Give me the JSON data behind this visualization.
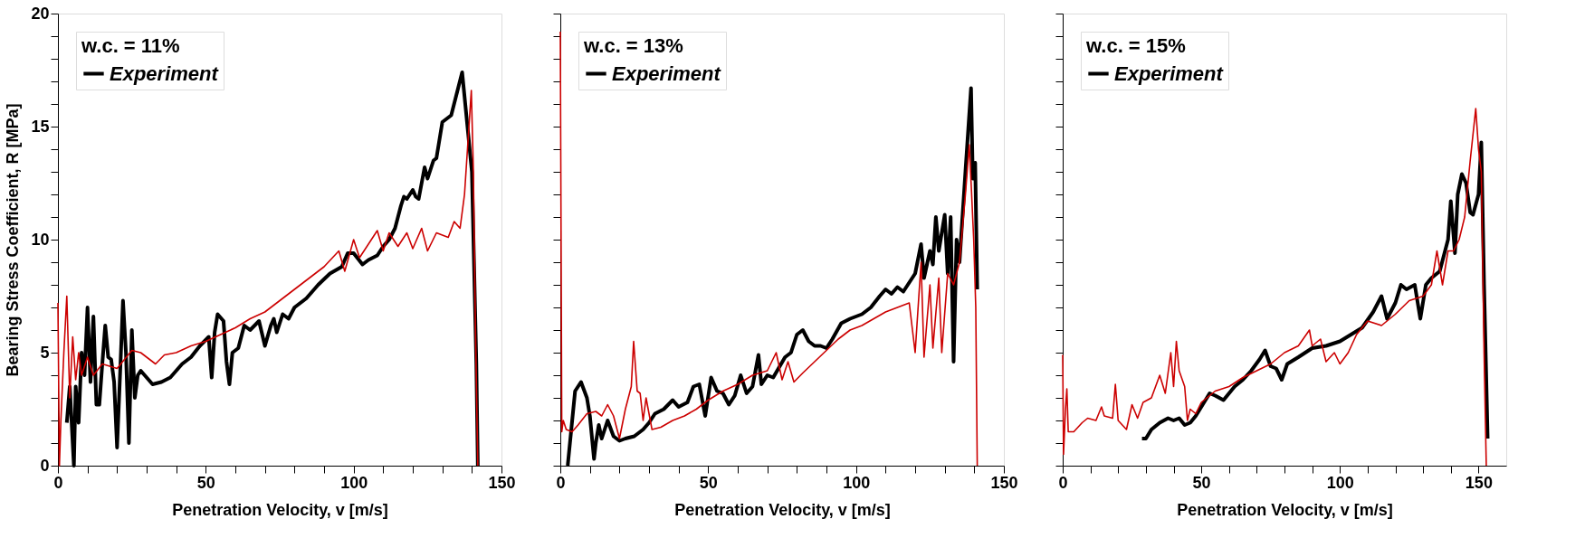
{
  "chart_data": [
    {
      "type": "line",
      "xlabel": "Penetration Velocity, v [m/s]",
      "ylabel": "Bearing Stress Coefficient, R [MPa]",
      "legend_title": "w.c. = 11%",
      "legend": "top left",
      "grid": false,
      "line_style": "solid",
      "marker": "none",
      "xlim": [
        0,
        150
      ],
      "xticks": [
        0,
        {
          "value": 10,
          "label": null
        },
        {
          "value": 20,
          "label": null
        },
        {
          "value": 30,
          "label": null
        },
        {
          "value": 40,
          "label": null
        },
        50,
        {
          "value": 60,
          "label": null
        },
        {
          "value": 70,
          "label": null
        },
        {
          "value": 80,
          "label": null
        },
        {
          "value": 90,
          "label": null
        },
        100,
        {
          "value": 110,
          "label": null
        },
        {
          "value": 120,
          "label": null
        },
        {
          "value": 130,
          "label": null
        },
        {
          "value": 140,
          "label": null
        },
        150
      ],
      "ylim": [
        0,
        20
      ],
      "yticks": [
        0,
        {
          "value": 1,
          "label": null
        },
        {
          "value": 2,
          "label": null
        },
        {
          "value": 3,
          "label": null
        },
        {
          "value": 4,
          "label": null
        },
        5,
        {
          "value": 6,
          "label": null
        },
        {
          "value": 7,
          "label": null
        },
        {
          "value": 8,
          "label": null
        },
        {
          "value": 9,
          "label": null
        },
        10,
        {
          "value": 11,
          "label": null
        },
        {
          "value": 12,
          "label": null
        },
        {
          "value": 13,
          "label": null
        },
        {
          "value": 14,
          "label": null
        },
        15,
        {
          "value": 16,
          "label": null
        },
        {
          "value": 17,
          "label": null
        },
        {
          "value": 18,
          "label": null
        },
        {
          "value": 19,
          "label": null
        },
        20
      ],
      "series": [
        {
          "name": "Experiment",
          "color": "#000000",
          "x": [
            3,
            4,
            5.4,
            6,
            7,
            8,
            9,
            10,
            11,
            12,
            13,
            14,
            15,
            16,
            17,
            18,
            19,
            20,
            21,
            22,
            23,
            24,
            25,
            26,
            27,
            28,
            30,
            32,
            35,
            38,
            40,
            42,
            45,
            48,
            51,
            52,
            53,
            54,
            56,
            57,
            58,
            59,
            61,
            63,
            65,
            68,
            70,
            72,
            73,
            74,
            76,
            78,
            80,
            84,
            88,
            92,
            96,
            98,
            100,
            103,
            105,
            108,
            110,
            112,
            114,
            116,
            117,
            118,
            120,
            121,
            122,
            124,
            125,
            127,
            128,
            130,
            133,
            136.7,
            138.5,
            140,
            141.5,
            142
          ],
          "values": [
            1.9,
            3.5,
            0,
            3.5,
            1.9,
            5,
            4,
            7,
            3.7,
            6.6,
            2.7,
            2.7,
            4.5,
            6.2,
            4.8,
            4.7,
            3.7,
            0.8,
            4,
            7.3,
            5,
            1,
            6,
            3,
            4,
            4.2,
            3.9,
            3.6,
            3.7,
            3.9,
            4.2,
            4.5,
            4.8,
            5.3,
            5.7,
            3.9,
            5.9,
            6.7,
            6.4,
            4.6,
            3.6,
            5,
            5.2,
            6.2,
            6,
            6.4,
            5.3,
            6.2,
            6.5,
            5.9,
            6.7,
            6.5,
            7,
            7.4,
            8,
            8.5,
            8.8,
            9.4,
            9.4,
            8.9,
            9.1,
            9.3,
            9.7,
            10,
            10.5,
            11.5,
            11.9,
            11.8,
            12.2,
            11.9,
            11.8,
            13.2,
            12.7,
            13.5,
            13.6,
            15.2,
            15.5,
            17.4,
            15,
            13,
            4.5,
            0
          ]
        },
        {
          "color": "#cc0000",
          "x": [
            0,
            0.5,
            1,
            2,
            3,
            4,
            5,
            6,
            7,
            8,
            10,
            12,
            15,
            20,
            25,
            28,
            30,
            33,
            36,
            40,
            45,
            50,
            55,
            60,
            65,
            70,
            75,
            80,
            85,
            90,
            95,
            97,
            100,
            102,
            105,
            108,
            110,
            112,
            115,
            118,
            120,
            123,
            125,
            128,
            132,
            134,
            136,
            137.5,
            139,
            139.8,
            140.5,
            141.2,
            142
          ],
          "values": [
            7.2,
            0,
            2,
            5,
            7.5,
            3,
            5.7,
            3.8,
            5,
            4,
            4.8,
            4,
            4.5,
            4.3,
            5.1,
            5,
            4.8,
            4.5,
            4.9,
            5,
            5.3,
            5.5,
            5.8,
            6.1,
            6.5,
            6.8,
            7.3,
            7.8,
            8.3,
            8.8,
            9.5,
            8.6,
            10,
            9.2,
            9.8,
            10.4,
            9.5,
            10.3,
            9.7,
            10.3,
            9.6,
            10.5,
            9.5,
            10.3,
            10.1,
            10.8,
            10.5,
            12,
            15,
            16.6,
            13,
            6,
            0
          ]
        }
      ]
    },
    {
      "type": "line",
      "xlabel": "Penetration Velocity, v [m/s]",
      "legend_title": "w.c. = 13%",
      "legend": "top left",
      "grid": false,
      "line_style": "solid",
      "marker": "none",
      "tick_labels": "x",
      "xlim": [
        0,
        150
      ],
      "xticks": [
        0,
        {
          "value": 10,
          "label": null
        },
        {
          "value": 20,
          "label": null
        },
        {
          "value": 30,
          "label": null
        },
        {
          "value": 40,
          "label": null
        },
        50,
        {
          "value": 60,
          "label": null
        },
        {
          "value": 70,
          "label": null
        },
        {
          "value": 80,
          "label": null
        },
        {
          "value": 90,
          "label": null
        },
        100,
        {
          "value": 110,
          "label": null
        },
        {
          "value": 120,
          "label": null
        },
        {
          "value": 130,
          "label": null
        },
        {
          "value": 140,
          "label": null
        },
        150
      ],
      "ylim": [
        0,
        20
      ],
      "yticks": [
        0,
        {
          "value": 1,
          "label": null
        },
        {
          "value": 2,
          "label": null
        },
        {
          "value": 3,
          "label": null
        },
        {
          "value": 4,
          "label": null
        },
        5,
        {
          "value": 6,
          "label": null
        },
        {
          "value": 7,
          "label": null
        },
        {
          "value": 8,
          "label": null
        },
        {
          "value": 9,
          "label": null
        },
        10,
        {
          "value": 11,
          "label": null
        },
        {
          "value": 12,
          "label": null
        },
        {
          "value": 13,
          "label": null
        },
        {
          "value": 14,
          "label": null
        },
        15,
        {
          "value": 16,
          "label": null
        },
        {
          "value": 17,
          "label": null
        },
        {
          "value": 18,
          "label": null
        },
        {
          "value": 19,
          "label": null
        },
        20
      ],
      "series": [
        {
          "name": "Experiment",
          "color": "#000000",
          "x": [
            2.5,
            5,
            7,
            9,
            10,
            11.4,
            12,
            13,
            14,
            16,
            18,
            20,
            22,
            25,
            28,
            30,
            32,
            35,
            38,
            40,
            43,
            45,
            47,
            49,
            51,
            53,
            55,
            57,
            59,
            61,
            63,
            65,
            67,
            68,
            70,
            72,
            76,
            78,
            80,
            82,
            84,
            86,
            88,
            90,
            92,
            95,
            98,
            102,
            105,
            108,
            110,
            112,
            114,
            116,
            118,
            120,
            122,
            123,
            125,
            126,
            127,
            128,
            130,
            131,
            132,
            133,
            134,
            135,
            137,
            138.9,
            139.5,
            140.3,
            141
          ],
          "values": [
            0,
            3.3,
            3.7,
            3,
            2.2,
            0.3,
            1,
            1.8,
            1.2,
            2,
            1.3,
            1.1,
            1.2,
            1.3,
            1.6,
            1.9,
            2.3,
            2.5,
            2.9,
            2.6,
            2.8,
            3.5,
            3.6,
            2.2,
            3.9,
            3.3,
            3.2,
            2.7,
            3.1,
            4,
            3.2,
            3.5,
            4.9,
            3.6,
            4,
            3.9,
            4.8,
            5,
            5.8,
            6,
            5.5,
            5.3,
            5.3,
            5.2,
            5.6,
            6.3,
            6.5,
            6.7,
            7,
            7.5,
            7.8,
            7.6,
            7.9,
            7.7,
            8.1,
            8.5,
            9.8,
            8.3,
            9.5,
            8.9,
            11,
            9.5,
            11.1,
            8.5,
            11,
            4.6,
            10,
            9,
            13,
            16.7,
            12.7,
            13.4,
            7.8
          ]
        },
        {
          "color": "#cc0000",
          "x": [
            0,
            0.5,
            1,
            2,
            4,
            6,
            9,
            12,
            14,
            16,
            18,
            20,
            22,
            24,
            24.8,
            26,
            27,
            28,
            29,
            31,
            34,
            38,
            42,
            46,
            50,
            55,
            60,
            65,
            70,
            73,
            75,
            77,
            79,
            82,
            86,
            90,
            94,
            98,
            102,
            106,
            110,
            114,
            118,
            120,
            122,
            123,
            125,
            126,
            128,
            129,
            131,
            133,
            135,
            137,
            138.3,
            139,
            139.8,
            140.5,
            141
          ],
          "values": [
            19.2,
            1.5,
            2,
            1.6,
            1.5,
            1.8,
            2.3,
            2.4,
            2.2,
            2.7,
            2.2,
            1.2,
            2.5,
            3.5,
            5.5,
            3.3,
            3.2,
            2,
            3,
            1.6,
            1.7,
            2,
            2.2,
            2.5,
            2.9,
            3.3,
            3.6,
            4,
            4.2,
            5,
            3.8,
            4.6,
            3.7,
            4.1,
            4.6,
            5.1,
            5.6,
            6,
            6.2,
            6.5,
            6.8,
            7,
            7.2,
            5,
            9,
            4.8,
            8,
            5.2,
            8.3,
            5,
            8.5,
            8,
            9,
            12,
            14.2,
            12.3,
            10,
            7,
            0
          ]
        }
      ]
    },
    {
      "type": "line",
      "xlabel": "Penetration Velocity, v [m/s]",
      "legend_title": "w.c. = 15%",
      "legend": "top left",
      "grid": false,
      "line_style": "solid",
      "marker": "none",
      "tick_labels": "x",
      "xlim": [
        0,
        160
      ],
      "xticks": [
        0,
        {
          "value": 10,
          "label": null
        },
        {
          "value": 20,
          "label": null
        },
        {
          "value": 30,
          "label": null
        },
        {
          "value": 40,
          "label": null
        },
        50,
        {
          "value": 60,
          "label": null
        },
        {
          "value": 70,
          "label": null
        },
        {
          "value": 80,
          "label": null
        },
        {
          "value": 90,
          "label": null
        },
        100,
        {
          "value": 110,
          "label": null
        },
        {
          "value": 120,
          "label": null
        },
        {
          "value": 130,
          "label": null
        },
        {
          "value": 140,
          "label": null
        },
        150
      ],
      "ylim": [
        0,
        20
      ],
      "yticks": [
        0,
        {
          "value": 1,
          "label": null
        },
        {
          "value": 2,
          "label": null
        },
        {
          "value": 3,
          "label": null
        },
        {
          "value": 4,
          "label": null
        },
        5,
        {
          "value": 6,
          "label": null
        },
        {
          "value": 7,
          "label": null
        },
        {
          "value": 8,
          "label": null
        },
        {
          "value": 9,
          "label": null
        },
        10,
        {
          "value": 11,
          "label": null
        },
        {
          "value": 12,
          "label": null
        },
        {
          "value": 13,
          "label": null
        },
        {
          "value": 14,
          "label": null
        },
        15,
        {
          "value": 16,
          "label": null
        },
        {
          "value": 17,
          "label": null
        },
        {
          "value": 18,
          "label": null
        },
        {
          "value": 19,
          "label": null
        },
        20
      ],
      "series": [
        {
          "name": "Experiment",
          "color": "#000000",
          "x": [
            28.6,
            30,
            32,
            35,
            38,
            40,
            42,
            44,
            46,
            48,
            50,
            53,
            55,
            58,
            62,
            65,
            68,
            71,
            73,
            75,
            77,
            79,
            81,
            85,
            90,
            95,
            100,
            104,
            108,
            112,
            115,
            117,
            120,
            122,
            124,
            127,
            129,
            131,
            133,
            136,
            139,
            140,
            141.5,
            142.5,
            144,
            145.5,
            147,
            148,
            150,
            151,
            152,
            153.3
          ],
          "values": [
            1.2,
            1.2,
            1.6,
            1.9,
            2.1,
            2,
            2.1,
            1.8,
            1.9,
            2.2,
            2.6,
            3.2,
            3.1,
            2.9,
            3.5,
            3.8,
            4.2,
            4.7,
            5.1,
            4.4,
            4.3,
            3.8,
            4.5,
            4.8,
            5.2,
            5.3,
            5.5,
            5.8,
            6.1,
            6.8,
            7.5,
            6.5,
            7.2,
            8,
            7.8,
            8,
            6.5,
            8,
            8.3,
            8.6,
            10,
            11.7,
            9.4,
            12,
            12.9,
            12.5,
            11.2,
            11.1,
            12,
            14.3,
            8,
            1.2
          ]
        },
        {
          "color": "#cc0000",
          "x": [
            0,
            0.3,
            1,
            1.5,
            2,
            4,
            7,
            9,
            12,
            14,
            15,
            18,
            19,
            20,
            23,
            25,
            27,
            29,
            32,
            35,
            37,
            39,
            40,
            41,
            42,
            44,
            45,
            46,
            48,
            50,
            55,
            60,
            65,
            70,
            75,
            80,
            85,
            89,
            90,
            93,
            95,
            98,
            100,
            103,
            106,
            110,
            115,
            120,
            125,
            130,
            133,
            135,
            137,
            139,
            141,
            143,
            145,
            147,
            149,
            150,
            151,
            152,
            152.8
          ],
          "values": [
            4.9,
            0.5,
            2.5,
            3.4,
            1.5,
            1.5,
            1.9,
            2.1,
            2,
            2.6,
            2.2,
            2.1,
            3.6,
            2,
            1.6,
            2.7,
            2.1,
            2.8,
            3,
            4,
            3.2,
            5,
            3.5,
            5.5,
            4.2,
            3.5,
            2,
            2.5,
            2.3,
            2.8,
            3.3,
            3.5,
            3.9,
            4.2,
            4.5,
            5,
            5.3,
            6,
            5.3,
            5.6,
            4.6,
            5,
            4.5,
            5,
            5.8,
            6.4,
            6.2,
            6.7,
            7.3,
            7.5,
            8,
            9.5,
            8,
            9.5,
            9.5,
            10,
            11,
            13.5,
            15.8,
            14,
            13,
            5,
            0
          ]
        }
      ]
    }
  ]
}
